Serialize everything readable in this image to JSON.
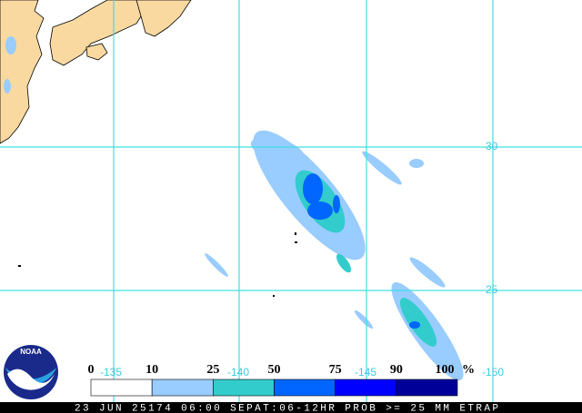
{
  "grid": {
    "latitudes": [
      "30",
      "25"
    ],
    "longitudes": [
      "-135",
      "-140",
      "-145",
      "-150"
    ]
  },
  "legend": {
    "labels": [
      "0",
      "10",
      "25",
      "50",
      "75",
      "90",
      "100"
    ],
    "unit": "%",
    "colors": [
      "#ffffff",
      "#99ccff",
      "#33cccc",
      "#0066ff",
      "#0000ff",
      "#000099"
    ]
  },
  "footer": "23 JUN 25174 06:00 SEPAT:06-12HR PROB >= 25 MM ETRAP",
  "logo": "NOAA"
}
